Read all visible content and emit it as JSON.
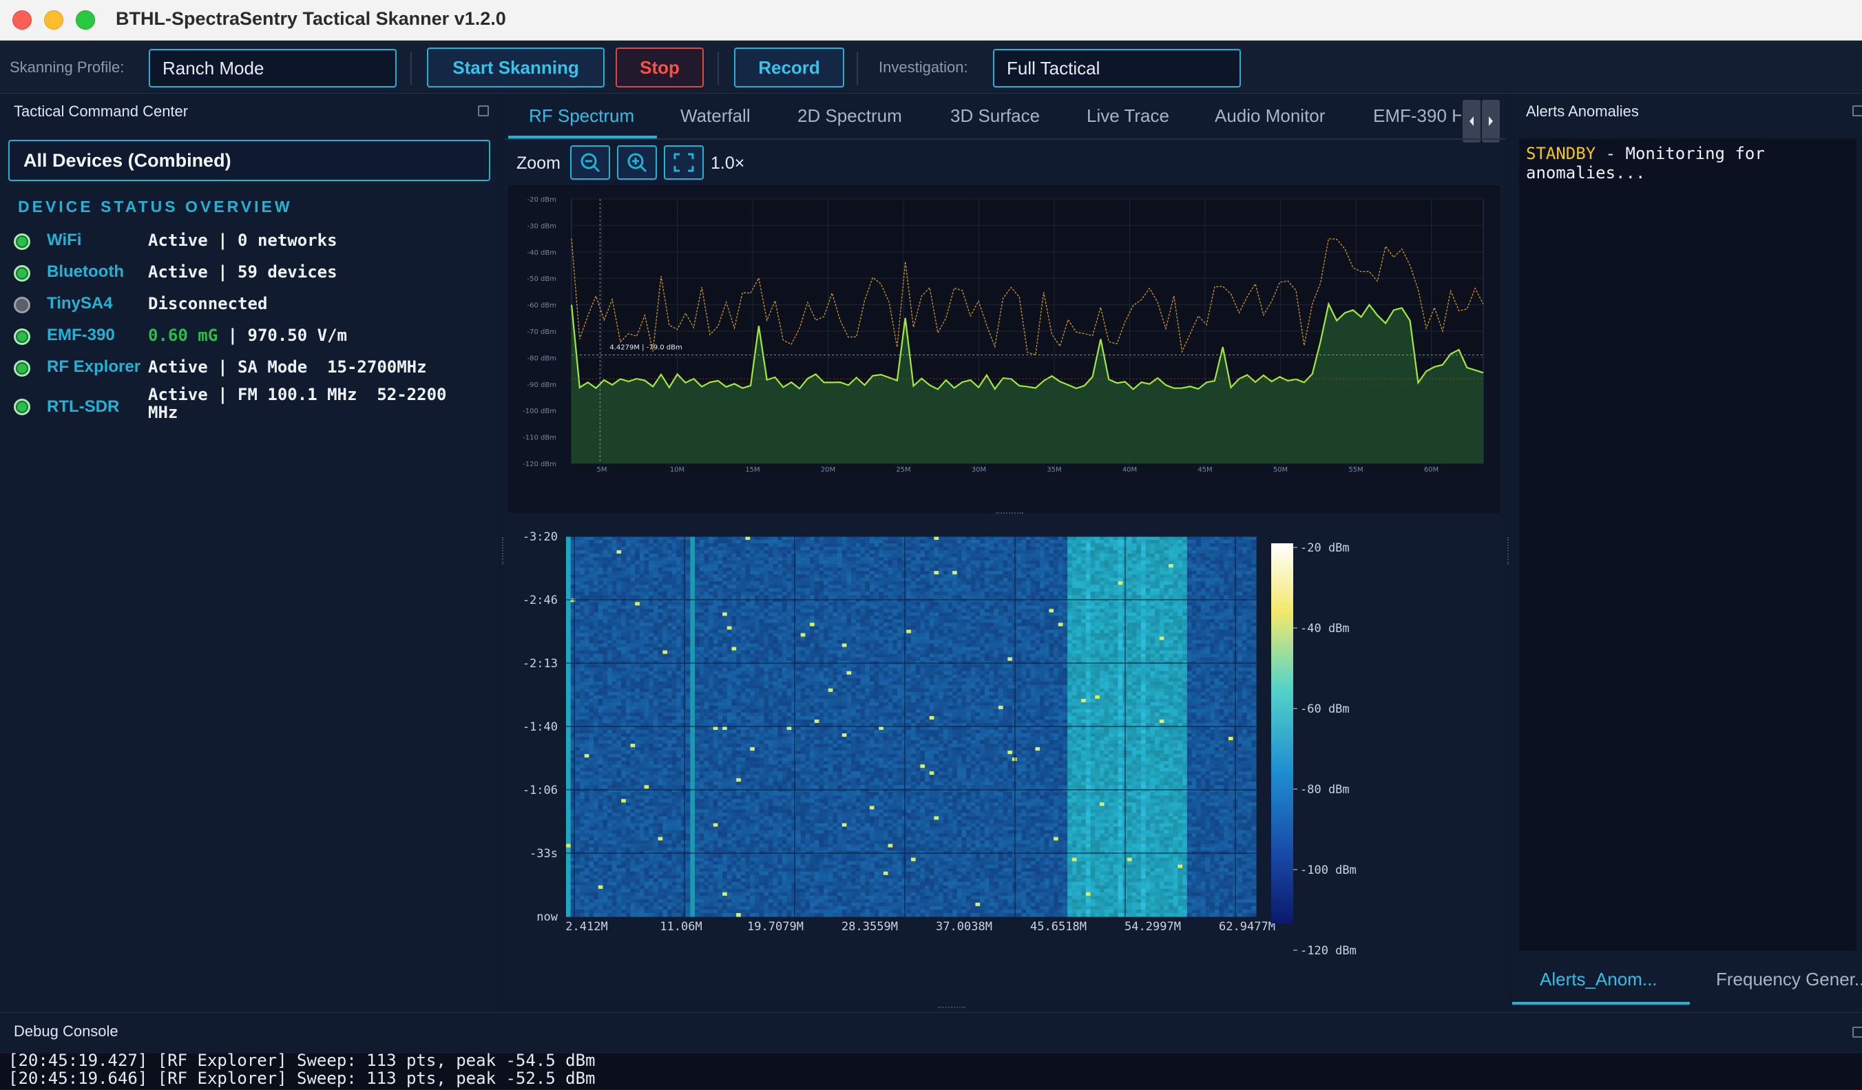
{
  "window": {
    "title": "BTHL-SpectraSentry Tactical Skanner v1.2.0"
  },
  "toolbar": {
    "profile_label": "Skanning Profile:",
    "profile_value": "Ranch Mode",
    "start_label": "Start Skanning",
    "stop_label": "Stop",
    "record_label": "Record",
    "investigation_label": "Investigation:",
    "investigation_value": "Full Tactical"
  },
  "left_panel": {
    "title": "Tactical Command Center",
    "device_selector": "All Devices (Combined)",
    "overview_title": "DEVICE STATUS OVERVIEW",
    "devices": [
      {
        "name": "WiFi",
        "status": "Active | 0 networks",
        "state": "on"
      },
      {
        "name": "Bluetooth",
        "status": "Active | 59 devices",
        "state": "on"
      },
      {
        "name": "TinySA4",
        "status": "Disconnected",
        "state": "off"
      },
      {
        "name": "EMF-390",
        "status_value": "0.60 mG",
        "status_rest": " | 970.50 V/m",
        "state": "on"
      },
      {
        "name": "RF Explorer",
        "status": "Active | SA Mode  15-2700MHz",
        "state": "on"
      },
      {
        "name": "RTL-SDR",
        "status": "Active | FM 100.1 MHz  52-2200",
        "status_line2": "MHz",
        "state": "on"
      }
    ]
  },
  "center": {
    "tabs": [
      "RF Spectrum",
      "Waterfall",
      "2D Spectrum",
      "3D Surface",
      "Live Trace",
      "Audio Monitor",
      "EMF-390 H"
    ],
    "zoom_label": "Zoom",
    "zoom_level": "1.0×",
    "spectrum_ylabels": [
      "-20 dBm",
      "-30 dBm",
      "-40 dBm",
      "-50 dBm",
      "-60 dBm",
      "-70 dBm",
      "-80 dBm",
      "-90 dBm",
      "-100 dBm",
      "-110 dBm",
      "-120 dBm"
    ],
    "spectrum_xlabels": [
      "5M",
      "10M",
      "15M",
      "20M",
      "25M",
      "30M",
      "35M",
      "40M",
      "45M",
      "50M",
      "55M",
      "60M"
    ],
    "cursor_readout": "4.4279M | -79.0 dBm",
    "waterfall": {
      "time_labels": [
        "-3:20",
        "-2:46",
        "-2:13",
        "-1:40",
        "-1:06",
        "-33s",
        "now"
      ],
      "freq_labels": [
        "2.412M",
        "11.06M",
        "19.7079M",
        "28.3559M",
        "37.0038M",
        "45.6518M",
        "54.2997M",
        "62.9477M"
      ],
      "colorbar_labels": [
        "-20 dBm",
        "-40 dBm",
        "-60 dBm",
        "-80 dBm",
        "-100 dBm",
        "-120 dBm"
      ]
    }
  },
  "right_panel": {
    "title": "Alerts  Anomalies",
    "status_word": "STANDBY",
    "status_text": " - Monitoring for anomalies...",
    "bottom_tabs": [
      "Alerts_Anom...",
      "Frequency Gener..."
    ]
  },
  "debug": {
    "title": "Debug Console",
    "lines": [
      "[20:45:19.427] [RF Explorer] Sweep: 113 pts, peak -54.5 dBm",
      "[20:45:19.646] [RF Explorer] Sweep: 113 pts, peak -52.5 dBm"
    ]
  },
  "colors": {
    "accent": "#1fb4d6",
    "stop": "#e0453f",
    "trace": "#a6e83a",
    "maxhold": "#d99a1c",
    "standby": "#f5c518",
    "active_dot": "#2bbd4a",
    "emf_value": "#2bbd4a"
  },
  "icons": [
    "zoom-out-icon",
    "zoom-in-icon",
    "fit-screen-icon",
    "dock-float-icon",
    "chevron-left-icon",
    "chevron-right-icon"
  ]
}
